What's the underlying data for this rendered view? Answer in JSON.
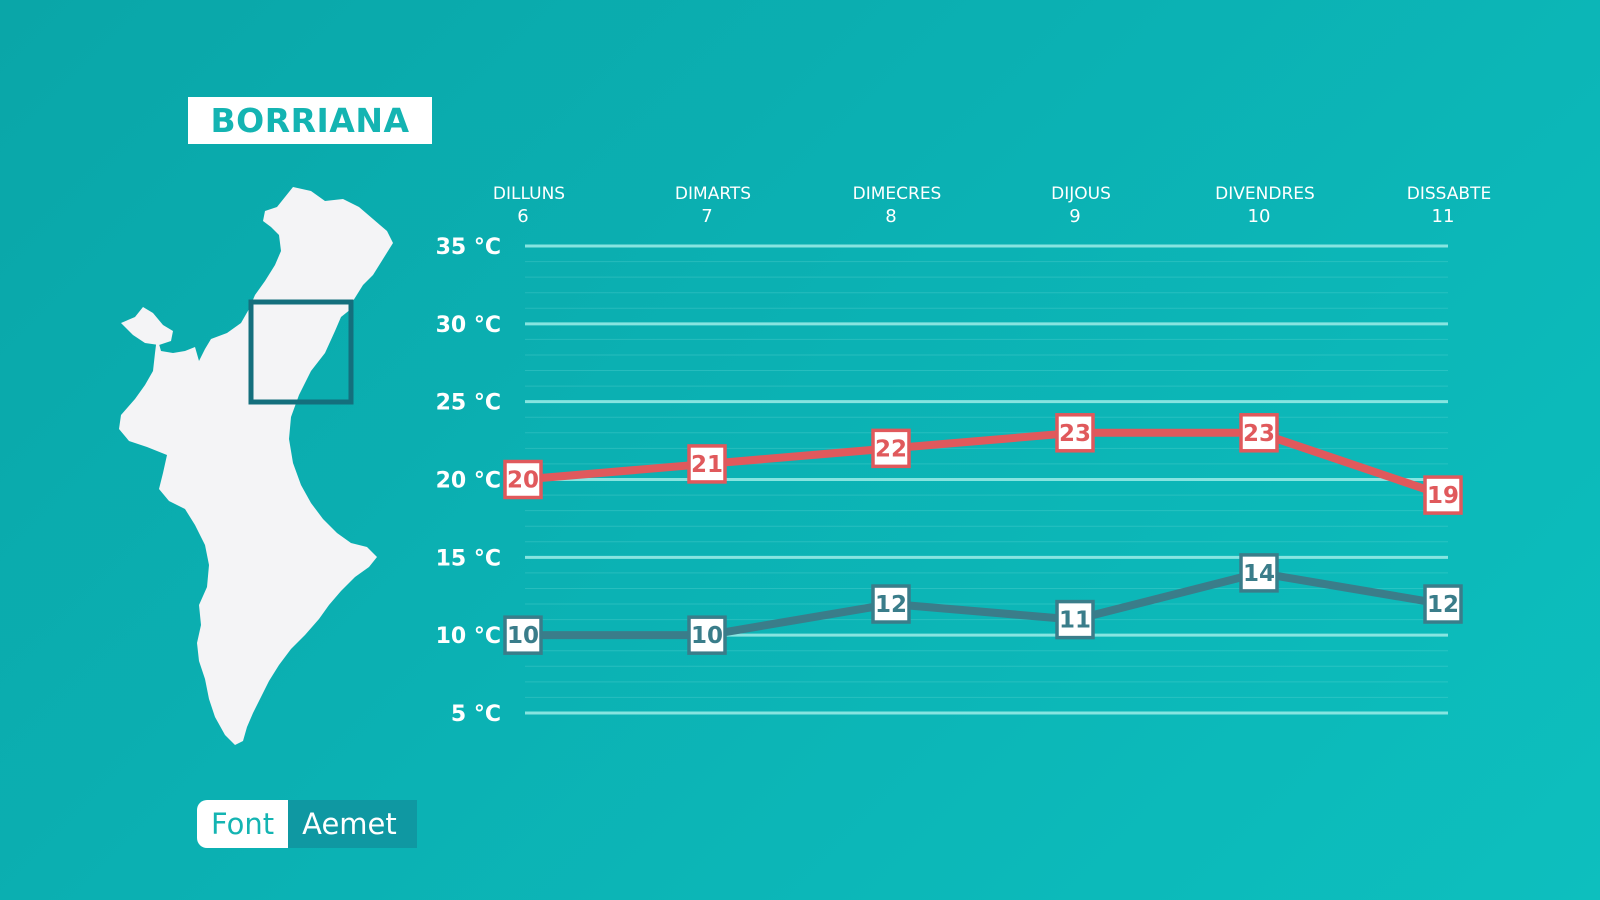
{
  "location": "BORRIANA",
  "source": {
    "label": "Font",
    "value": "Aemet"
  },
  "colors": {
    "max_series": "#e0595c",
    "min_series": "#3a7d8a",
    "grid": "#8ee7e3",
    "map_fill": "#f4f4f6",
    "map_box": "#146f7d"
  },
  "chart_data": {
    "type": "line",
    "title": "",
    "xlabel": "",
    "ylabel": "",
    "categories": [
      {
        "day": "DILLUNS",
        "num": "6"
      },
      {
        "day": "DIMARTS",
        "num": "7"
      },
      {
        "day": "DIMECRES",
        "num": "8"
      },
      {
        "day": "DIJOUS",
        "num": "9"
      },
      {
        "day": "DIVENDRES",
        "num": "10"
      },
      {
        "day": "DISSABTE",
        "num": "11"
      }
    ],
    "y_ticks": [
      {
        "value": 35,
        "label": "35 °C"
      },
      {
        "value": 30,
        "label": "30 °C"
      },
      {
        "value": 25,
        "label": "25 °C"
      },
      {
        "value": 20,
        "label": "20 °C"
      },
      {
        "value": 15,
        "label": "15 °C"
      },
      {
        "value": 10,
        "label": "10 °C"
      },
      {
        "value": 5,
        "label": "5 °C"
      }
    ],
    "ylim": [
      5,
      35
    ],
    "grid": true,
    "series": [
      {
        "key": "max",
        "values": [
          20,
          21,
          22,
          23,
          23,
          19
        ]
      },
      {
        "key": "min",
        "values": [
          10,
          10,
          12,
          11,
          14,
          12
        ]
      }
    ]
  }
}
